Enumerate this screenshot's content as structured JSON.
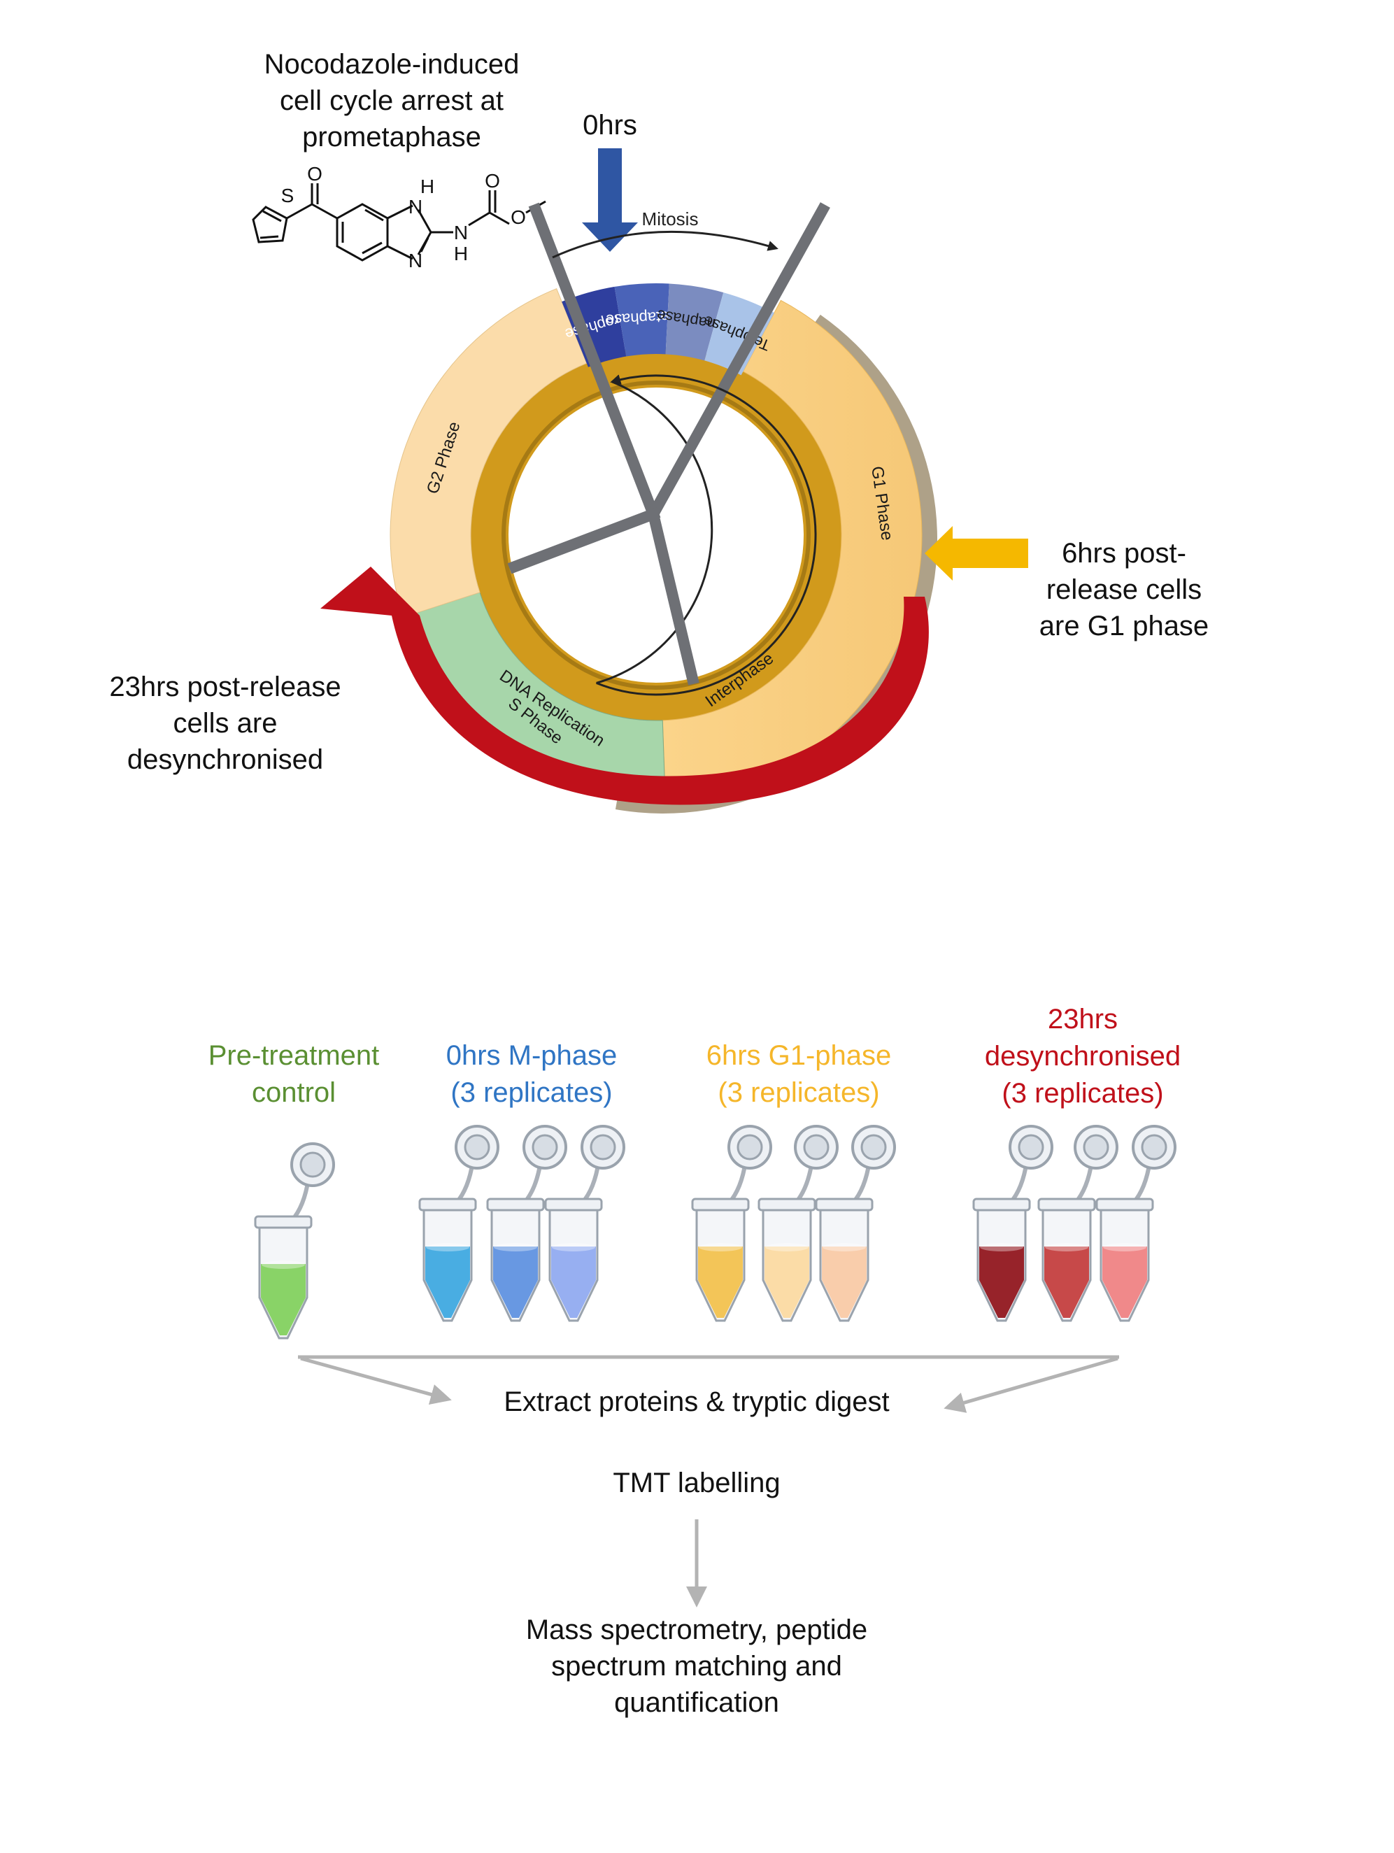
{
  "arrest": {
    "lines": [
      "Nocodazole-induced",
      "cell cycle arrest at",
      "prometaphase"
    ],
    "molecule_atoms": {
      "S": "S",
      "O_ketone": "O",
      "O_carbonyl": "O",
      "O_ester": "O",
      "N_top": "N",
      "H_top": "H",
      "N_bottom": "N",
      "NH_N": "N",
      "NH_H": "H"
    }
  },
  "timepoints": {
    "t0": "0hrs",
    "t6": [
      "6hrs post-",
      "release cells",
      "are G1 phase"
    ],
    "t23": [
      "23hrs post-release",
      "cells are",
      "desynchronised"
    ]
  },
  "cycle": {
    "mitosis": "Mitosis",
    "mitosis_phases": [
      "Prophase",
      "Metaphase",
      "Anaphase",
      "Telophase"
    ],
    "g1": "G1 Phase",
    "g2": "G2 Phase",
    "s_phase": [
      "S Phase",
      "DNA Replication"
    ],
    "interphase": "Interphase"
  },
  "groups": [
    {
      "title": [
        "Pre-treatment",
        "control"
      ],
      "color": "#5a8f32",
      "tube_colors": [
        "#7fcf5a"
      ]
    },
    {
      "title": [
        "0hrs M-phase",
        "(3 replicates)"
      ],
      "color": "#2f75c4",
      "tube_colors": [
        "#3aa6e0",
        "#5b8fe0",
        "#8ea8f0"
      ]
    },
    {
      "title": [
        "6hrs G1-phase",
        "(3 replicates)"
      ],
      "color": "#f5b62a",
      "tube_colors": [
        "#f2c04a",
        "#fbd9a0",
        "#f9c9a4"
      ]
    },
    {
      "title": [
        "23hrs",
        "desynchronised",
        "(3 replicates)"
      ],
      "color": "#c0101a",
      "tube_colors": [
        "#8e1018",
        "#c23a3a",
        "#ef7f80"
      ]
    }
  ],
  "workflow": {
    "step1": "Extract proteins & tryptic digest",
    "step2": "TMT labelling",
    "step3": [
      "Mass spectrometry, peptide",
      "spectrum matching and",
      "quantification"
    ]
  },
  "colors": {
    "mitosis_phases": [
      "#2f3f9e",
      "#4a63b8",
      "#7b8cc0",
      "#a9c3e8"
    ],
    "g1": "#fbd48a",
    "g2": "#fbdcaa",
    "s_phase": "#a7d6aa",
    "interphase_ring": "#d19a1c",
    "t0_arrow": "#2f56a3",
    "t6_arrow": "#f5b800",
    "t23_arrow": "#c0101a",
    "spindle": "#6e7075",
    "workflow_arrow": "#b3b3b3"
  }
}
